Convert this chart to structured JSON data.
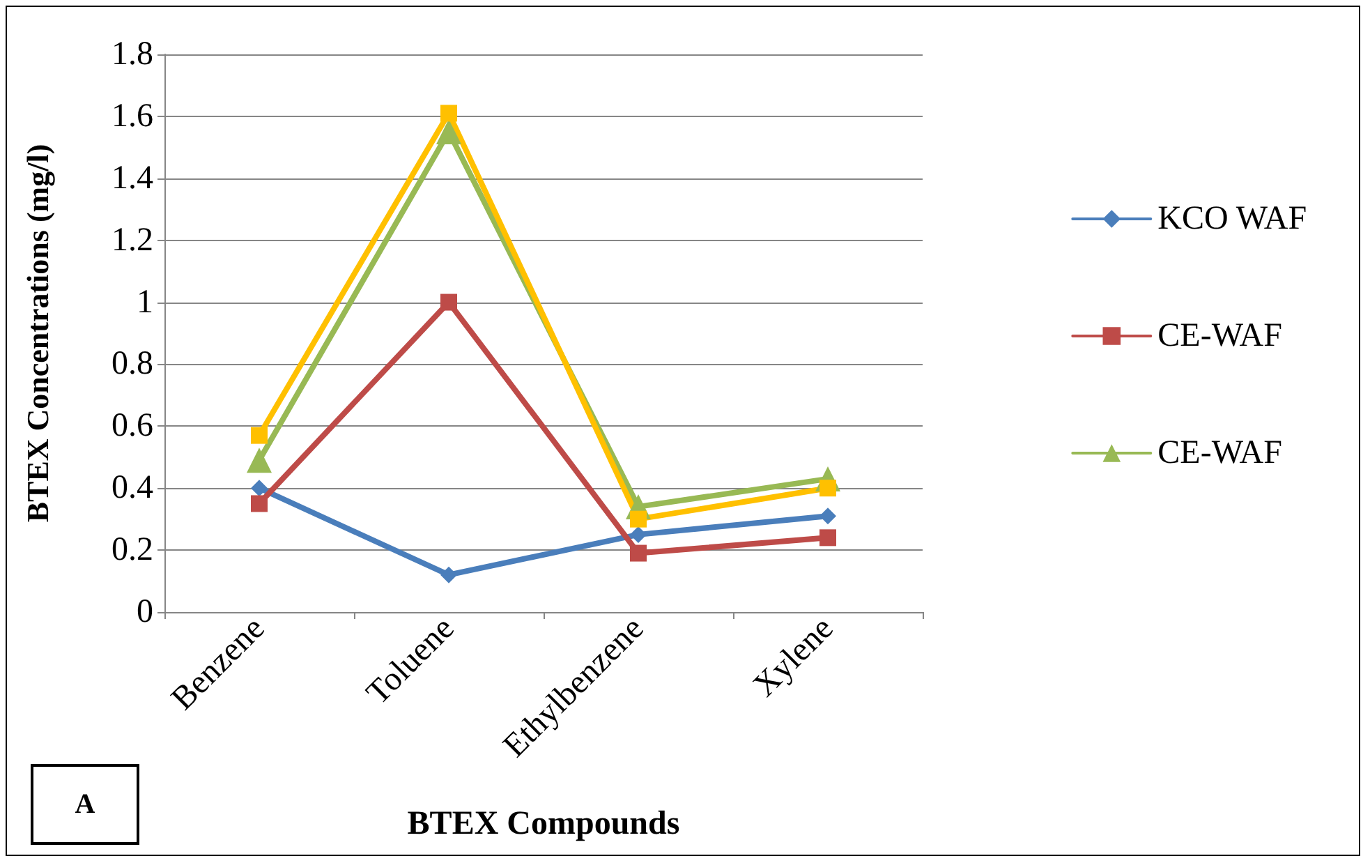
{
  "chart_data": {
    "type": "line",
    "xlabel": "BTEX Compounds",
    "ylabel": "BTEX Concentrations (mg/l)",
    "annotations": [
      "A"
    ],
    "categories": [
      "Benzene",
      "Toluene",
      "Ethylbenzene",
      "Xylene"
    ],
    "series": [
      {
        "name": "KCO WAF",
        "color": "#4a7ebb",
        "marker": "diamond",
        "values": [
          0.4,
          0.12,
          0.25,
          0.31
        ]
      },
      {
        "name": "CE-WAF",
        "color": "#be4b48",
        "marker": "square",
        "values": [
          0.35,
          1.0,
          0.19,
          0.24
        ]
      },
      {
        "name": "CE-WAF",
        "color": "#98b954",
        "marker": "triangle",
        "values": [
          0.49,
          1.55,
          0.34,
          0.43
        ]
      },
      {
        "color": "#ffc000",
        "marker": "square",
        "values": [
          0.57,
          1.61,
          0.3,
          0.4
        ]
      }
    ],
    "ylim": [
      0,
      1.8
    ],
    "yticks": [
      0,
      0.2,
      0.4,
      0.6,
      0.8,
      1,
      1.2,
      1.4,
      1.6,
      1.8
    ],
    "grid": "y",
    "legend": "right",
    "line_style": "solid"
  }
}
